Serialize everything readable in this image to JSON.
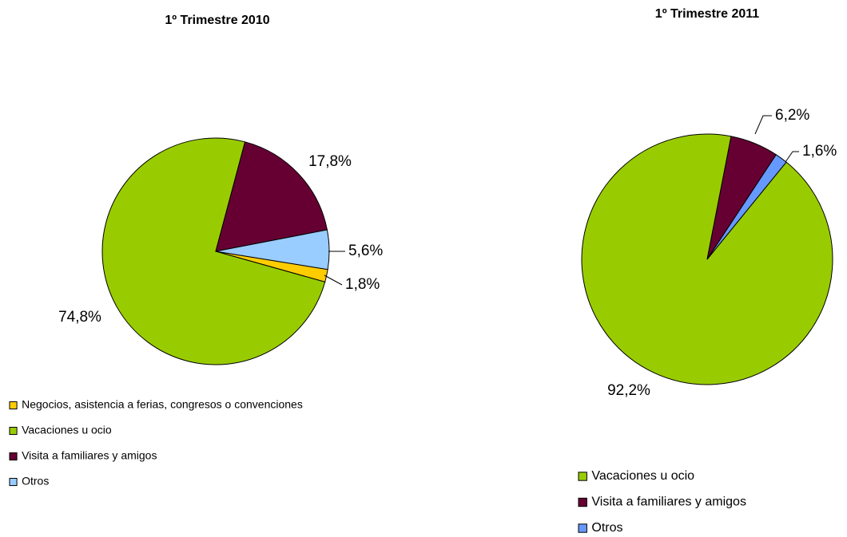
{
  "chart_data": [
    {
      "type": "pie",
      "title": "1º Trimestre 2010",
      "categories": [
        "Negocios, asistencia a ferias, congresos o convenciones",
        "Vacaciones u ocio",
        "Visita a familiares y amigos",
        "Otros"
      ],
      "values": [
        1.8,
        74.8,
        17.8,
        5.6
      ],
      "value_labels": [
        "1,8%",
        "74,8%",
        "17,8%",
        "5,6%"
      ],
      "colors": [
        "#ffcc00",
        "#99cc00",
        "#660033",
        "#99ccff"
      ]
    },
    {
      "type": "pie",
      "title": "1º Trimestre 2011",
      "categories": [
        "Vacaciones u ocio",
        "Visita a familiares y amigos",
        "Otros"
      ],
      "values": [
        92.2,
        6.2,
        1.6
      ],
      "value_labels": [
        "92,2%",
        "6,2%",
        "1,6%"
      ],
      "colors": [
        "#99cc00",
        "#660033",
        "#6699ff"
      ]
    }
  ]
}
